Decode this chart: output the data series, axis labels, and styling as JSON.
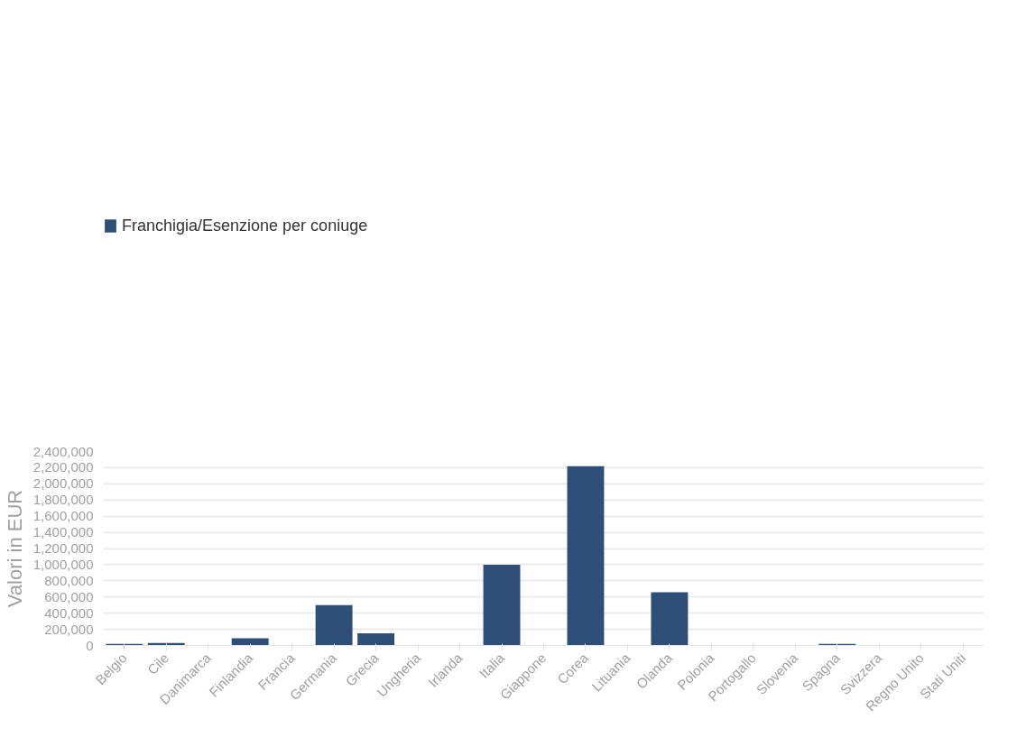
{
  "chart_data": {
    "type": "bar",
    "ylabel": "Valori in EUR",
    "categories": [
      "Belgio",
      "Cile",
      "Danimarca",
      "Finlandia",
      "Francia",
      "Germania",
      "Grecia",
      "Ungheria",
      "Irlanda",
      "Italia",
      "Giappone",
      "Corea",
      "Lituania",
      "Olanda",
      "Polonia",
      "Portogallo",
      "Slovenia",
      "Spagna",
      "Svizzera",
      "Regno Unito",
      "Stati Uniti"
    ],
    "series": [
      {
        "name": "Franchigia/Esenzione per coniuge",
        "color": "#2b4a74",
        "values": [
          20000,
          30000,
          null,
          90000,
          null,
          500000,
          150000,
          null,
          null,
          1000000,
          null,
          2220000,
          null,
          660000,
          null,
          null,
          null,
          20000,
          null,
          null,
          null
        ]
      }
    ],
    "ylim": [
      0,
      2400000
    ],
    "yticks": [
      {
        "value": 0,
        "label": "0"
      },
      {
        "value": 200000,
        "label": "200,000"
      },
      {
        "value": 400000,
        "label": "400,000"
      },
      {
        "value": 600000,
        "label": "600,000"
      },
      {
        "value": 800000,
        "label": "800,000"
      },
      {
        "value": 1000000,
        "label": "1,000,000"
      },
      {
        "value": 1200000,
        "label": "1,200,000"
      },
      {
        "value": 1400000,
        "label": "1,400,000"
      },
      {
        "value": 1600000,
        "label": "1,600,000"
      },
      {
        "value": 1800000,
        "label": "1,800,000"
      },
      {
        "value": 2000000,
        "label": "2,000,000"
      },
      {
        "value": 2200000,
        "label": "2,200,000"
      },
      {
        "value": 2400000,
        "label": "2,400,000"
      }
    ],
    "grid": "y",
    "legend": "top left"
  }
}
